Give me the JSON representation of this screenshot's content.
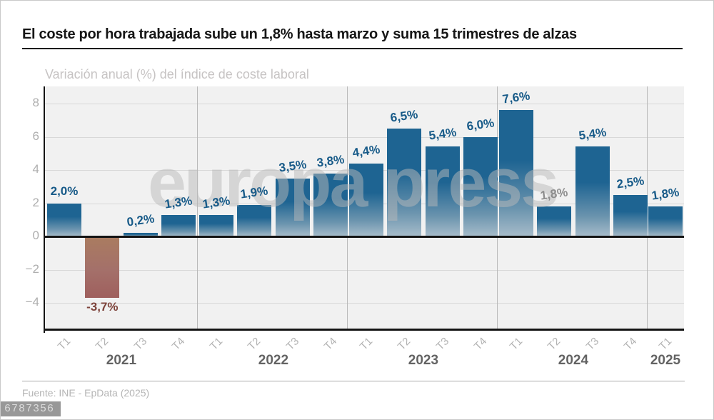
{
  "header": {
    "title": "El coste por hora trabajada sube un 1,8% hasta marzo y suma 15 trimestres de alzas"
  },
  "watermark": "europa press",
  "footer": {
    "source": "Fuente: INE - EpData (2025)",
    "id_stamp": "6787356"
  },
  "colors": {
    "bar_positive": "#1e6492",
    "bar_positive_mid": "#6b94ae",
    "bar_positive_fade": "#a7bcca",
    "bar_negative_top": "#aa7c60",
    "bar_negative_mid": "#a4706a",
    "bar_negative_bottom": "#9f5f5d",
    "label_positive": "#175a88",
    "label_negative": "#7e443c",
    "label_muted": "#8d8d8d",
    "axis": "#141414",
    "grid": "#d8d8d8",
    "plot_background": "#f1f1f1"
  },
  "chart_data": {
    "type": "bar",
    "title": "Variación anual (%) del índice de coste laboral",
    "unit": "%",
    "ylim": [
      -5.7,
      9.0
    ],
    "yticks": [
      8,
      6,
      4,
      2,
      0,
      -2,
      -4
    ],
    "grid": true,
    "years": [
      {
        "label": "2021",
        "quarters": [
          "T1",
          "T2",
          "T3",
          "T4"
        ]
      },
      {
        "label": "2022",
        "quarters": [
          "T1",
          "T2",
          "T3",
          "T4"
        ]
      },
      {
        "label": "2023",
        "quarters": [
          "T1",
          "T2",
          "T3",
          "T4"
        ]
      },
      {
        "label": "2024",
        "quarters": [
          "T1",
          "T2",
          "T3",
          "T4"
        ]
      },
      {
        "label": "2025",
        "quarters": [
          "T1"
        ]
      }
    ],
    "bars": [
      {
        "year": "2021",
        "quarter": "T1",
        "value": 2.0,
        "label": "2,0%",
        "style": "positive"
      },
      {
        "year": "2021",
        "quarter": "T2",
        "value": -3.7,
        "label": "-3,7%",
        "style": "negative"
      },
      {
        "year": "2021",
        "quarter": "T3",
        "value": 0.2,
        "label": "0,2%",
        "style": "positive"
      },
      {
        "year": "2021",
        "quarter": "T4",
        "value": 1.3,
        "label": "1,3%",
        "style": "positive"
      },
      {
        "year": "2022",
        "quarter": "T1",
        "value": 1.3,
        "label": "1,3%",
        "style": "positive"
      },
      {
        "year": "2022",
        "quarter": "T2",
        "value": 1.9,
        "label": "1,9%",
        "style": "positive"
      },
      {
        "year": "2022",
        "quarter": "T3",
        "value": 3.5,
        "label": "3,5%",
        "style": "positive"
      },
      {
        "year": "2022",
        "quarter": "T4",
        "value": 3.8,
        "label": "3,8%",
        "style": "positive"
      },
      {
        "year": "2023",
        "quarter": "T1",
        "value": 4.4,
        "label": "4,4%",
        "style": "positive"
      },
      {
        "year": "2023",
        "quarter": "T2",
        "value": 6.5,
        "label": "6,5%",
        "style": "positive"
      },
      {
        "year": "2023",
        "quarter": "T3",
        "value": 5.4,
        "label": "5,4%",
        "style": "positive"
      },
      {
        "year": "2023",
        "quarter": "T4",
        "value": 6.0,
        "label": "6,0%",
        "style": "positive"
      },
      {
        "year": "2024",
        "quarter": "T1",
        "value": 7.6,
        "label": "7,6%",
        "style": "positive"
      },
      {
        "year": "2024",
        "quarter": "T2",
        "value": 1.8,
        "label": "1,8%",
        "style": "muted"
      },
      {
        "year": "2024",
        "quarter": "T3",
        "value": 5.4,
        "label": "5,4%",
        "style": "positive"
      },
      {
        "year": "2024",
        "quarter": "T4",
        "value": 2.5,
        "label": "2,5%",
        "style": "positive"
      },
      {
        "year": "2025",
        "quarter": "T1",
        "value": 1.8,
        "label": "1,8%",
        "style": "positive"
      }
    ]
  }
}
